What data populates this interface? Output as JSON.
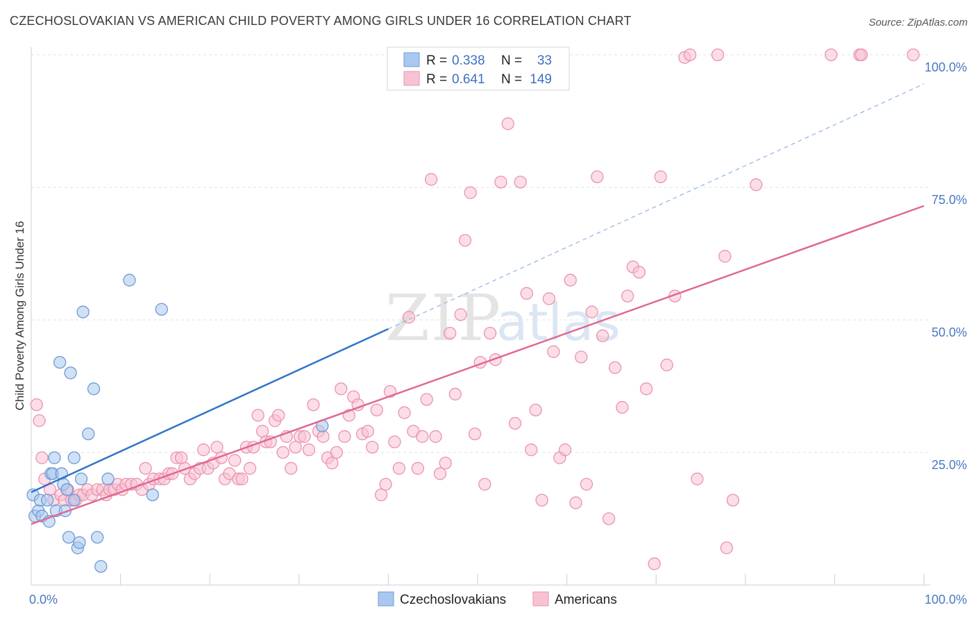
{
  "title": "CZECHOSLOVAKIAN VS AMERICAN CHILD POVERTY AMONG GIRLS UNDER 16 CORRELATION CHART",
  "source": "Source: ZipAtlas.com",
  "watermark": {
    "zip": "ZIP",
    "atlas": "atlas"
  },
  "colors": {
    "blue_fill": "#aac8ef",
    "blue_stroke": "#6d9ad8",
    "blue_line": "#2f74c9",
    "pink_fill": "#f7c3d3",
    "pink_stroke": "#ec92ad",
    "pink_line": "#e06892",
    "tick": "#4a78c2",
    "grid": "#e2e2e2"
  },
  "legend": {
    "rows": [
      {
        "r_label": "R =",
        "r_value": "0.338",
        "n_label": "N =",
        "n_value": "33"
      },
      {
        "r_label": "R =",
        "r_value": "0.641",
        "n_label": "N =",
        "n_value": "149"
      }
    ]
  },
  "chart_data": {
    "type": "scatter",
    "title": "CZECHOSLOVAKIAN VS AMERICAN CHILD POVERTY AMONG GIRLS UNDER 16 CORRELATION CHART",
    "xlabel": "",
    "ylabel": "Child Poverty Among Girls Under 16",
    "xlim": [
      0,
      100
    ],
    "ylim": [
      0,
      100
    ],
    "x_tick_labels": [
      "0.0%",
      "100.0%"
    ],
    "y_tick_labels": [
      "25.0%",
      "50.0%",
      "75.0%",
      "100.0%"
    ],
    "y_ticks": [
      25,
      50,
      75,
      100
    ],
    "grid": true,
    "legend_position": "top-center",
    "series": [
      {
        "name": "Czechoslovakians",
        "r": 0.338,
        "n": 33,
        "trend": {
          "x0": 0,
          "y0": 17.5,
          "x1": 100,
          "y1": 94.5,
          "solid_until_x": 40
        },
        "points": [
          [
            0.2,
            17
          ],
          [
            0.4,
            13
          ],
          [
            0.8,
            14
          ],
          [
            1,
            16
          ],
          [
            1.2,
            13
          ],
          [
            1.8,
            16
          ],
          [
            2,
            12
          ],
          [
            2.2,
            21
          ],
          [
            2.4,
            21
          ],
          [
            2.6,
            24
          ],
          [
            2.8,
            14
          ],
          [
            3.2,
            42
          ],
          [
            3.4,
            21
          ],
          [
            3.6,
            19
          ],
          [
            3.8,
            14
          ],
          [
            4,
            18
          ],
          [
            4.2,
            9
          ],
          [
            4.4,
            40
          ],
          [
            4.8,
            16
          ],
          [
            4.8,
            24
          ],
          [
            5.2,
            7
          ],
          [
            5.4,
            8
          ],
          [
            5.6,
            20
          ],
          [
            5.8,
            51.5
          ],
          [
            6.4,
            28.5
          ],
          [
            7,
            37
          ],
          [
            7.4,
            9
          ],
          [
            7.8,
            3.5
          ],
          [
            8.6,
            20
          ],
          [
            11,
            57.5
          ],
          [
            13.6,
            17
          ],
          [
            14.6,
            52
          ],
          [
            32.6,
            30
          ]
        ]
      },
      {
        "name": "Americans",
        "r": 0.641,
        "n": 149,
        "trend": {
          "x0": 0,
          "y0": 11.5,
          "x1": 100,
          "y1": 71.5
        },
        "points": [
          [
            0.6,
            34
          ],
          [
            0.9,
            31
          ],
          [
            1.2,
            24
          ],
          [
            1.5,
            20
          ],
          [
            2.1,
            18
          ],
          [
            2.5,
            16
          ],
          [
            3.3,
            17
          ],
          [
            3.7,
            16
          ],
          [
            4.1,
            18
          ],
          [
            4.5,
            16
          ],
          [
            5,
            16
          ],
          [
            5.4,
            17
          ],
          [
            5.8,
            17
          ],
          [
            6.3,
            18
          ],
          [
            6.8,
            17
          ],
          [
            7.4,
            18
          ],
          [
            8,
            18
          ],
          [
            8.4,
            17
          ],
          [
            8.8,
            18
          ],
          [
            9.3,
            18
          ],
          [
            9.7,
            19
          ],
          [
            10.2,
            18
          ],
          [
            10.6,
            19
          ],
          [
            11.2,
            19
          ],
          [
            11.8,
            19
          ],
          [
            12.4,
            18
          ],
          [
            12.8,
            22
          ],
          [
            13.2,
            19
          ],
          [
            13.7,
            20
          ],
          [
            14.4,
            20
          ],
          [
            14.9,
            20
          ],
          [
            15.4,
            21
          ],
          [
            15.8,
            21
          ],
          [
            16.3,
            24
          ],
          [
            16.8,
            24
          ],
          [
            17.2,
            22
          ],
          [
            17.8,
            20
          ],
          [
            18.3,
            21
          ],
          [
            18.9,
            22
          ],
          [
            19.3,
            25.5
          ],
          [
            19.8,
            22
          ],
          [
            20.4,
            23
          ],
          [
            20.8,
            26
          ],
          [
            21.3,
            24
          ],
          [
            21.7,
            20
          ],
          [
            22.2,
            21
          ],
          [
            22.8,
            23.5
          ],
          [
            23.2,
            20
          ],
          [
            23.6,
            20
          ],
          [
            24.1,
            26
          ],
          [
            24.5,
            22
          ],
          [
            24.9,
            26
          ],
          [
            25.4,
            32
          ],
          [
            25.9,
            29
          ],
          [
            26.3,
            27
          ],
          [
            26.8,
            27
          ],
          [
            27.3,
            31
          ],
          [
            27.7,
            32
          ],
          [
            28.2,
            25
          ],
          [
            28.6,
            28
          ],
          [
            29.1,
            22
          ],
          [
            29.6,
            26
          ],
          [
            30.1,
            28
          ],
          [
            30.6,
            28
          ],
          [
            31.1,
            25.5
          ],
          [
            31.6,
            34
          ],
          [
            32.2,
            29
          ],
          [
            32.7,
            28
          ],
          [
            33.2,
            24
          ],
          [
            33.7,
            23
          ],
          [
            34.2,
            25
          ],
          [
            34.7,
            37
          ],
          [
            35.1,
            28
          ],
          [
            35.6,
            32
          ],
          [
            36.1,
            35.5
          ],
          [
            36.6,
            34
          ],
          [
            37.1,
            28.5
          ],
          [
            37.7,
            29
          ],
          [
            38.2,
            26
          ],
          [
            38.7,
            33
          ],
          [
            39.2,
            17
          ],
          [
            39.7,
            19
          ],
          [
            40.2,
            36.5
          ],
          [
            40.7,
            27
          ],
          [
            41.2,
            22
          ],
          [
            41.8,
            32.5
          ],
          [
            42.3,
            50.5
          ],
          [
            42.8,
            29
          ],
          [
            43.3,
            22
          ],
          [
            43.8,
            28
          ],
          [
            44.3,
            35
          ],
          [
            44.8,
            76.5
          ],
          [
            45.3,
            28
          ],
          [
            45.8,
            21
          ],
          [
            46.4,
            23
          ],
          [
            46.9,
            47.5
          ],
          [
            47.5,
            36
          ],
          [
            48.1,
            51
          ],
          [
            48.6,
            65
          ],
          [
            49.2,
            74
          ],
          [
            49.7,
            28.5
          ],
          [
            50.3,
            42
          ],
          [
            50.8,
            19
          ],
          [
            51.4,
            47.5
          ],
          [
            52,
            42.5
          ],
          [
            52.6,
            76
          ],
          [
            53.4,
            87
          ],
          [
            54.2,
            30.5
          ],
          [
            54.8,
            76
          ],
          [
            55.5,
            55
          ],
          [
            56,
            25.5
          ],
          [
            56.5,
            33
          ],
          [
            57.2,
            16
          ],
          [
            58,
            54
          ],
          [
            58.5,
            44
          ],
          [
            59.2,
            24
          ],
          [
            59.8,
            25.5
          ],
          [
            60.4,
            57.5
          ],
          [
            61,
            15.5
          ],
          [
            61.6,
            43
          ],
          [
            62.2,
            19
          ],
          [
            62.8,
            51.5
          ],
          [
            63.4,
            77
          ],
          [
            64,
            47
          ],
          [
            64.7,
            12.5
          ],
          [
            65.4,
            41
          ],
          [
            66.2,
            33.5
          ],
          [
            66.8,
            54.5
          ],
          [
            67.4,
            60
          ],
          [
            68.1,
            59
          ],
          [
            68.9,
            37
          ],
          [
            69.8,
            4
          ],
          [
            70.5,
            77
          ],
          [
            71.2,
            41.5
          ],
          [
            72.1,
            54.5
          ],
          [
            73.2,
            99.5
          ],
          [
            73.8,
            100
          ],
          [
            74.6,
            20
          ],
          [
            76.9,
            100
          ],
          [
            77.7,
            62
          ],
          [
            77.9,
            7
          ],
          [
            78.6,
            16
          ],
          [
            81.2,
            75.5
          ],
          [
            89.6,
            100
          ],
          [
            92.8,
            100
          ],
          [
            93,
            100
          ],
          [
            98.8,
            100
          ]
        ]
      }
    ]
  }
}
